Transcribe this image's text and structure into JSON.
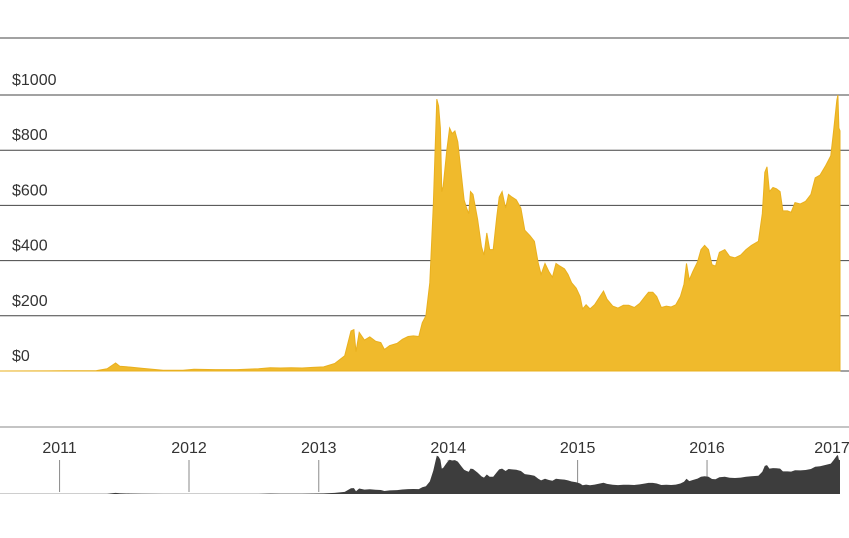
{
  "colors": {
    "area_fill": "#F0BA2C",
    "area_stroke": "#E9B01F",
    "gridline": "#444444",
    "overview_fill": "#3D3D3D",
    "overview_axis": "#8A8A8A",
    "text": "#333333",
    "background": "#FFFFFF"
  },
  "chart_data": {
    "type": "area",
    "title": "",
    "xlabel": "",
    "ylabel": "",
    "ylim": [
      0,
      1000
    ],
    "grid": true,
    "legend": "none",
    "y_ticks": [
      {
        "value": 0,
        "label": "$0"
      },
      {
        "value": 200,
        "label": "$200"
      },
      {
        "value": 400,
        "label": "$400"
      },
      {
        "value": 600,
        "label": "$600"
      },
      {
        "value": 800,
        "label": "$800"
      },
      {
        "value": 1000,
        "label": "$1000"
      }
    ],
    "x_ticks": [
      {
        "value": "2011-01-01",
        "label": "2011"
      },
      {
        "value": "2012-01-01",
        "label": "2012"
      },
      {
        "value": "2013-01-01",
        "label": "2013"
      },
      {
        "value": "2014-01-01",
        "label": "2014"
      },
      {
        "value": "2015-01-01",
        "label": "2015"
      },
      {
        "value": "2016-01-01",
        "label": "2016"
      },
      {
        "value": "2017-01-01",
        "label": "2017"
      }
    ],
    "x_range": [
      "2010-07-17",
      "2017-01-10"
    ],
    "series": [
      {
        "values": [
          [
            "2010-07-17",
            0.1
          ],
          [
            "2010-12-01",
            0.3
          ],
          [
            "2011-01-15",
            0.6
          ],
          [
            "2011-03-01",
            0.9
          ],
          [
            "2011-04-15",
            1.5
          ],
          [
            "2011-05-15",
            8
          ],
          [
            "2011-06-08",
            29
          ],
          [
            "2011-06-20",
            17
          ],
          [
            "2011-07-20",
            14
          ],
          [
            "2011-08-20",
            10
          ],
          [
            "2011-10-20",
            3
          ],
          [
            "2011-12-15",
            3
          ],
          [
            "2012-01-15",
            6.5
          ],
          [
            "2012-03-15",
            5
          ],
          [
            "2012-05-15",
            5.1
          ],
          [
            "2012-07-15",
            8.5
          ],
          [
            "2012-08-17",
            12
          ],
          [
            "2012-09-15",
            11
          ],
          [
            "2012-10-15",
            11.5
          ],
          [
            "2012-11-15",
            11
          ],
          [
            "2012-12-15",
            13
          ],
          [
            "2013-01-15",
            15
          ],
          [
            "2013-02-15",
            27
          ],
          [
            "2013-03-15",
            55
          ],
          [
            "2013-04-02",
            145
          ],
          [
            "2013-04-10",
            150
          ],
          [
            "2013-04-16",
            70
          ],
          [
            "2013-04-25",
            140
          ],
          [
            "2013-05-10",
            112
          ],
          [
            "2013-05-25",
            124
          ],
          [
            "2013-06-10",
            108
          ],
          [
            "2013-06-25",
            103
          ],
          [
            "2013-07-05",
            78
          ],
          [
            "2013-07-20",
            92
          ],
          [
            "2013-08-10",
            100
          ],
          [
            "2013-08-25",
            115
          ],
          [
            "2013-09-10",
            125
          ],
          [
            "2013-09-25",
            127
          ],
          [
            "2013-10-10",
            125
          ],
          [
            "2013-10-20",
            175
          ],
          [
            "2013-10-30",
            200
          ],
          [
            "2013-11-10",
            320
          ],
          [
            "2013-11-20",
            600
          ],
          [
            "2013-11-25",
            800
          ],
          [
            "2013-11-30",
            985
          ],
          [
            "2013-12-05",
            960
          ],
          [
            "2013-12-10",
            880
          ],
          [
            "2013-12-14",
            650
          ],
          [
            "2013-12-18",
            670
          ],
          [
            "2013-12-28",
            800
          ],
          [
            "2014-01-05",
            880
          ],
          [
            "2014-01-12",
            860
          ],
          [
            "2014-01-20",
            870
          ],
          [
            "2014-01-28",
            830
          ],
          [
            "2014-02-08",
            700
          ],
          [
            "2014-02-15",
            620
          ],
          [
            "2014-02-22",
            590
          ],
          [
            "2014-02-28",
            570
          ],
          [
            "2014-03-05",
            650
          ],
          [
            "2014-03-12",
            640
          ],
          [
            "2014-03-25",
            550
          ],
          [
            "2014-04-05",
            450
          ],
          [
            "2014-04-12",
            420
          ],
          [
            "2014-04-20",
            500
          ],
          [
            "2014-04-28",
            440
          ],
          [
            "2014-05-08",
            440
          ],
          [
            "2014-05-18",
            560
          ],
          [
            "2014-05-25",
            630
          ],
          [
            "2014-06-02",
            650
          ],
          [
            "2014-06-12",
            590
          ],
          [
            "2014-06-20",
            640
          ],
          [
            "2014-06-30",
            630
          ],
          [
            "2014-07-12",
            620
          ],
          [
            "2014-07-25",
            590
          ],
          [
            "2014-08-05",
            510
          ],
          [
            "2014-08-20",
            490
          ],
          [
            "2014-09-01",
            470
          ],
          [
            "2014-09-12",
            390
          ],
          [
            "2014-09-20",
            350
          ],
          [
            "2014-10-01",
            390
          ],
          [
            "2014-10-12",
            360
          ],
          [
            "2014-10-22",
            340
          ],
          [
            "2014-11-01",
            390
          ],
          [
            "2014-11-12",
            380
          ],
          [
            "2014-11-25",
            370
          ],
          [
            "2014-12-05",
            350
          ],
          [
            "2014-12-15",
            320
          ],
          [
            "2014-12-28",
            300
          ],
          [
            "2015-01-08",
            270
          ],
          [
            "2015-01-15",
            225
          ],
          [
            "2015-01-25",
            240
          ],
          [
            "2015-02-05",
            225
          ],
          [
            "2015-02-18",
            240
          ],
          [
            "2015-03-05",
            270
          ],
          [
            "2015-03-15",
            290
          ],
          [
            "2015-03-25",
            260
          ],
          [
            "2015-04-10",
            235
          ],
          [
            "2015-04-25",
            228
          ],
          [
            "2015-05-10",
            238
          ],
          [
            "2015-05-25",
            238
          ],
          [
            "2015-06-10",
            230
          ],
          [
            "2015-06-25",
            245
          ],
          [
            "2015-07-10",
            270
          ],
          [
            "2015-07-20",
            285
          ],
          [
            "2015-08-01",
            285
          ],
          [
            "2015-08-12",
            270
          ],
          [
            "2015-08-25",
            230
          ],
          [
            "2015-09-08",
            235
          ],
          [
            "2015-09-22",
            232
          ],
          [
            "2015-10-05",
            240
          ],
          [
            "2015-10-18",
            270
          ],
          [
            "2015-10-28",
            315
          ],
          [
            "2015-11-04",
            390
          ],
          [
            "2015-11-12",
            330
          ],
          [
            "2015-11-22",
            360
          ],
          [
            "2015-12-05",
            395
          ],
          [
            "2015-12-15",
            440
          ],
          [
            "2015-12-25",
            455
          ],
          [
            "2016-01-05",
            440
          ],
          [
            "2016-01-15",
            385
          ],
          [
            "2016-01-25",
            380
          ],
          [
            "2016-02-05",
            430
          ],
          [
            "2016-02-20",
            440
          ],
          [
            "2016-03-05",
            415
          ],
          [
            "2016-03-20",
            410
          ],
          [
            "2016-04-05",
            420
          ],
          [
            "2016-04-20",
            440
          ],
          [
            "2016-05-05",
            455
          ],
          [
            "2016-05-25",
            470
          ],
          [
            "2016-06-05",
            570
          ],
          [
            "2016-06-12",
            720
          ],
          [
            "2016-06-18",
            740
          ],
          [
            "2016-06-25",
            650
          ],
          [
            "2016-07-05",
            665
          ],
          [
            "2016-07-15",
            660
          ],
          [
            "2016-07-25",
            650
          ],
          [
            "2016-08-02",
            580
          ],
          [
            "2016-08-15",
            580
          ],
          [
            "2016-08-25",
            575
          ],
          [
            "2016-09-05",
            610
          ],
          [
            "2016-09-20",
            605
          ],
          [
            "2016-10-05",
            615
          ],
          [
            "2016-10-20",
            640
          ],
          [
            "2016-11-01",
            700
          ],
          [
            "2016-11-15",
            710
          ],
          [
            "2016-12-01",
            745
          ],
          [
            "2016-12-15",
            780
          ],
          [
            "2016-12-22",
            860
          ],
          [
            "2017-01-01",
            980
          ],
          [
            "2017-01-04",
            1000
          ],
          [
            "2017-01-07",
            880
          ],
          [
            "2017-01-10",
            870
          ]
        ]
      }
    ]
  }
}
